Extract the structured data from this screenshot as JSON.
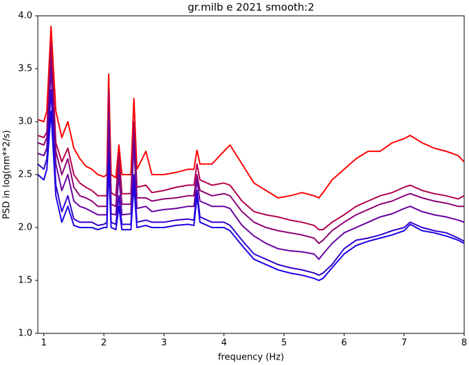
{
  "chart_data": {
    "type": "line",
    "title": "gr.milb e 2021 smooth:2",
    "x_label": "frequency (Hz)",
    "y_label": "PSD in log(nm**2/s)",
    "x": [
      0.9,
      1.0,
      1.05,
      1.12,
      1.2,
      1.3,
      1.4,
      1.5,
      1.6,
      1.7,
      1.8,
      1.9,
      2.0,
      2.05,
      2.08,
      2.12,
      2.2,
      2.25,
      2.3,
      2.45,
      2.5,
      2.55,
      2.7,
      2.8,
      3.0,
      3.2,
      3.4,
      3.5,
      3.55,
      3.6,
      3.8,
      4.0,
      4.1,
      4.3,
      4.5,
      4.7,
      4.9,
      5.1,
      5.3,
      5.5,
      5.58,
      5.65,
      5.8,
      6.0,
      6.2,
      6.4,
      6.6,
      6.8,
      7.0,
      7.1,
      7.3,
      7.5,
      7.7,
      7.9,
      8.0
    ],
    "series": [
      {
        "color": "#ff0000",
        "values": [
          3.02,
          3.0,
          3.1,
          3.9,
          3.1,
          2.85,
          3.0,
          2.75,
          2.65,
          2.58,
          2.55,
          2.5,
          2.48,
          2.5,
          3.45,
          2.5,
          2.47,
          2.78,
          2.5,
          2.5,
          3.22,
          2.55,
          2.72,
          2.5,
          2.5,
          2.52,
          2.55,
          2.55,
          2.73,
          2.6,
          2.6,
          2.72,
          2.78,
          2.6,
          2.42,
          2.35,
          2.28,
          2.3,
          2.33,
          2.3,
          2.28,
          2.33,
          2.45,
          2.55,
          2.65,
          2.72,
          2.72,
          2.8,
          2.84,
          2.87,
          2.8,
          2.75,
          2.72,
          2.68,
          2.62
        ]
      },
      {
        "color": "#b3004c",
        "values": [
          2.87,
          2.85,
          2.9,
          3.75,
          2.8,
          2.62,
          2.75,
          2.5,
          2.42,
          2.38,
          2.35,
          2.3,
          2.3,
          2.3,
          3.3,
          2.33,
          2.3,
          2.7,
          2.32,
          2.32,
          3.0,
          2.38,
          2.4,
          2.33,
          2.35,
          2.38,
          2.4,
          2.4,
          2.6,
          2.45,
          2.4,
          2.42,
          2.4,
          2.25,
          2.15,
          2.12,
          2.1,
          2.07,
          2.05,
          2.02,
          1.98,
          1.98,
          2.05,
          2.12,
          2.2,
          2.25,
          2.3,
          2.33,
          2.38,
          2.4,
          2.35,
          2.32,
          2.3,
          2.27,
          2.3
        ]
      },
      {
        "color": "#8c0073",
        "values": [
          2.8,
          2.78,
          2.85,
          3.6,
          2.72,
          2.5,
          2.65,
          2.38,
          2.3,
          2.28,
          2.25,
          2.2,
          2.2,
          2.2,
          3.1,
          2.22,
          2.2,
          2.6,
          2.22,
          2.22,
          2.9,
          2.28,
          2.28,
          2.25,
          2.27,
          2.28,
          2.3,
          2.3,
          2.5,
          2.35,
          2.3,
          2.32,
          2.3,
          2.15,
          2.05,
          2.0,
          1.97,
          1.95,
          1.93,
          1.9,
          1.85,
          1.88,
          1.97,
          2.05,
          2.12,
          2.17,
          2.22,
          2.25,
          2.3,
          2.32,
          2.28,
          2.25,
          2.23,
          2.2,
          2.2
        ]
      },
      {
        "color": "#6600a0",
        "values": [
          2.7,
          2.68,
          2.75,
          3.5,
          2.6,
          2.35,
          2.5,
          2.25,
          2.2,
          2.18,
          2.15,
          2.12,
          2.12,
          2.12,
          3.0,
          2.13,
          2.12,
          2.5,
          2.12,
          2.13,
          2.8,
          2.18,
          2.2,
          2.15,
          2.17,
          2.18,
          2.2,
          2.2,
          2.45,
          2.25,
          2.2,
          2.2,
          2.18,
          2.02,
          1.92,
          1.85,
          1.8,
          1.78,
          1.77,
          1.75,
          1.7,
          1.75,
          1.85,
          1.95,
          2.0,
          2.05,
          2.1,
          2.13,
          2.18,
          2.2,
          2.15,
          2.12,
          2.1,
          2.07,
          2.05
        ]
      },
      {
        "color": "#3300cc",
        "values": [
          2.6,
          2.55,
          2.65,
          3.3,
          2.4,
          2.15,
          2.3,
          2.08,
          2.05,
          2.05,
          2.05,
          2.02,
          2.03,
          2.05,
          2.7,
          2.05,
          2.03,
          2.3,
          2.03,
          2.03,
          2.5,
          2.05,
          2.07,
          2.05,
          2.05,
          2.07,
          2.08,
          2.07,
          2.35,
          2.1,
          2.05,
          2.05,
          2.02,
          1.88,
          1.75,
          1.7,
          1.65,
          1.62,
          1.6,
          1.57,
          1.55,
          1.57,
          1.65,
          1.8,
          1.88,
          1.9,
          1.93,
          1.97,
          2.0,
          2.05,
          2.0,
          1.97,
          1.95,
          1.9,
          1.87
        ]
      },
      {
        "color": "#1a00e6",
        "values": [
          2.5,
          2.45,
          2.55,
          3.1,
          2.3,
          2.05,
          2.2,
          2.02,
          2.0,
          2.0,
          2.0,
          1.98,
          2.0,
          2.0,
          2.6,
          2.0,
          1.98,
          2.2,
          1.98,
          1.98,
          2.4,
          2.0,
          2.02,
          2.0,
          2.0,
          2.02,
          2.03,
          2.02,
          2.3,
          2.05,
          2.0,
          2.0,
          1.97,
          1.83,
          1.7,
          1.65,
          1.6,
          1.57,
          1.55,
          1.52,
          1.5,
          1.52,
          1.62,
          1.75,
          1.83,
          1.87,
          1.9,
          1.93,
          1.97,
          2.03,
          1.97,
          1.95,
          1.92,
          1.88,
          1.85
        ]
      }
    ],
    "xlim": [
      0.9,
      8
    ],
    "xticks": [
      1,
      2,
      3,
      4,
      5,
      6,
      7,
      8
    ],
    "ylim": [
      1,
      4
    ],
    "yticks": [
      {
        "value": 1,
        "label": "1.0"
      },
      1.5,
      {
        "value": 2,
        "label": "2.0"
      },
      2.5,
      {
        "value": 3,
        "label": "3.0"
      },
      3.5,
      {
        "value": 4,
        "label": "4.0"
      }
    ]
  }
}
